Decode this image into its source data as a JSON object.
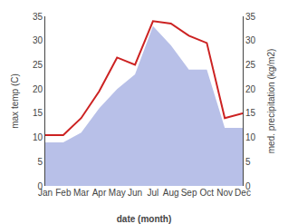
{
  "chart_data": {
    "type": "line",
    "categories": [
      "Jan",
      "Feb",
      "Mar",
      "Apr",
      "May",
      "Jun",
      "Jul",
      "Aug",
      "Sep",
      "Oct",
      "Nov",
      "Dec"
    ],
    "series": [
      {
        "type": "area",
        "color": "#b8c0e8",
        "axis": "y2",
        "values": [
          9,
          9,
          11,
          16,
          20,
          23,
          33,
          29,
          24,
          24,
          12,
          12
        ]
      },
      {
        "type": "line",
        "color": "#cc2222",
        "values": [
          10.5,
          10.5,
          14.0,
          19.5,
          26.5,
          25.0,
          34.0,
          33.5,
          31.0,
          29.5,
          14.0,
          15.0
        ]
      }
    ],
    "xlabel": "date (month)",
    "ylabel": "max temp (C)",
    "y2label": "med. precipitation (kg/m2)",
    "ylim": [
      0,
      35
    ],
    "yticks": [
      0,
      5,
      10,
      15,
      20,
      25,
      30,
      35
    ],
    "y2lim": [
      0,
      35
    ],
    "y2ticks": [
      0,
      5,
      10,
      15,
      20,
      25,
      30,
      35
    ],
    "grid": false
  }
}
